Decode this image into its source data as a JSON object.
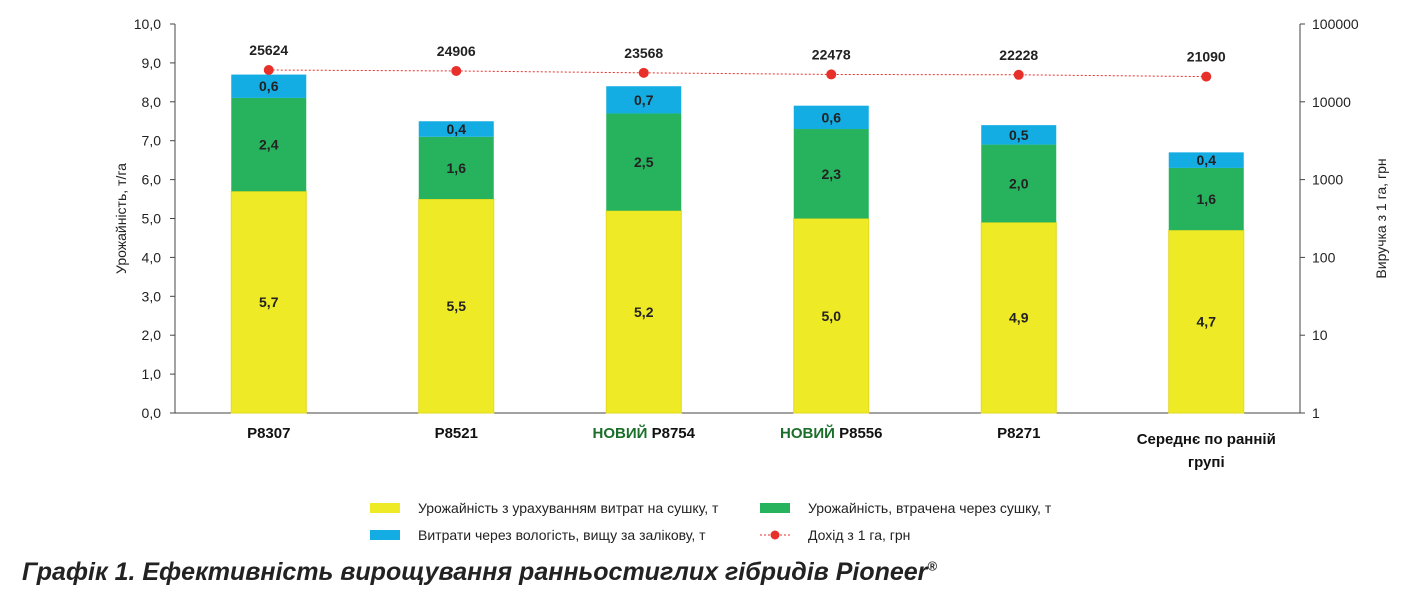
{
  "chart_data": {
    "type": "bar",
    "stacked": true,
    "categories": [
      {
        "prefix": "",
        "name": "P8307"
      },
      {
        "prefix": "",
        "name": "P8521"
      },
      {
        "prefix": "НОВИЙ",
        "name": "P8754"
      },
      {
        "prefix": "НОВИЙ",
        "name": "P8556"
      },
      {
        "prefix": "",
        "name": "P8271"
      },
      {
        "prefix": "",
        "name": "Середнє по ранній групі"
      }
    ],
    "series": [
      {
        "name": "Урожайність з урахуванням витрат на сушку, т",
        "color": "#eeea26",
        "values": [
          5.7,
          5.5,
          5.2,
          5.0,
          4.9,
          4.7
        ],
        "labels": [
          "5,7",
          "5,5",
          "5,2",
          "5,0",
          "4,9",
          "4,7"
        ]
      },
      {
        "name": "Урожайність, втрачена через сушку, т",
        "color": "#27b35d",
        "values": [
          2.4,
          1.6,
          2.5,
          2.3,
          2.0,
          1.6
        ],
        "labels": [
          "2,4",
          "1,6",
          "2,5",
          "2,3",
          "2,0",
          "1,6"
        ]
      },
      {
        "name": "Витрати через вологість, вищу за залікову, т",
        "color": "#13ace3",
        "values": [
          0.6,
          0.4,
          0.7,
          0.6,
          0.5,
          0.4
        ],
        "labels": [
          "0,6",
          "0,4",
          "0,7",
          "0,6",
          "0,5",
          "0,4"
        ]
      }
    ],
    "line_series": {
      "name": "Дохід з 1 га, грн",
      "color": "#e8302b",
      "axis": "right",
      "values": [
        25624,
        24906,
        23568,
        22478,
        22228,
        21090
      ]
    },
    "ylabel": "Урожайність, т/га",
    "ylim": [
      0,
      10
    ],
    "yticks": [
      "0,0",
      "1,0",
      "2,0",
      "3,0",
      "4,0",
      "5,0",
      "6,0",
      "7,0",
      "8,0",
      "9,0",
      "10,0"
    ],
    "y2label": "Виручка з 1 га, грн",
    "y2scale": "log",
    "y2lim": [
      1,
      100000
    ],
    "y2ticks": [
      "1",
      "10",
      "100",
      "1000",
      "10000",
      "100000"
    ],
    "legend_position": "bottom",
    "title": "Графік 1. Ефективність вирощування ранньостиглих гібридів Pioneer",
    "title_mark": "®"
  }
}
